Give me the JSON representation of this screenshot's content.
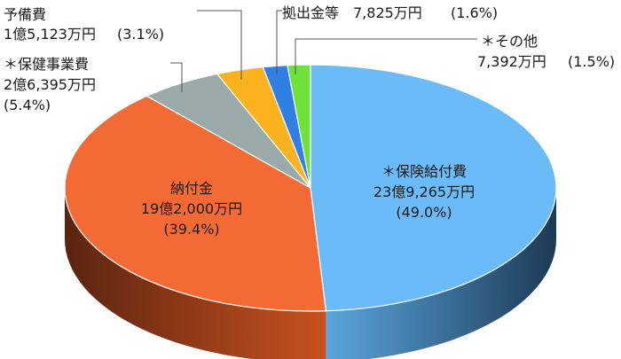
{
  "chart_data": {
    "type": "pie",
    "title": "",
    "slices": [
      {
        "key": "hoken_kyufu",
        "label": "＊保険給付費",
        "amount": "23億9,265万円",
        "pct_label": "(49.0%)",
        "value": 49.0,
        "color": "#6bbbf8",
        "side_color": "#2f6f9e"
      },
      {
        "key": "nofukin",
        "label": "納付金",
        "amount": "19億2,000万円",
        "pct_label": "(39.4%)",
        "value": 39.4,
        "color": "#f46a35",
        "side_color": "#8f3613"
      },
      {
        "key": "hoken_jigyo",
        "label": "＊保健事業費",
        "amount": "2億6,395万円",
        "pct_label": "(5.4%)",
        "value": 5.4,
        "color": "#9aa9a9",
        "side_color": "#5c6868"
      },
      {
        "key": "yobi",
        "label": "予備費",
        "amount": "1億5,123万円",
        "pct_label": "(3.1%)",
        "value": 3.1,
        "color": "#fbb21f",
        "side_color": "#9b6c0c"
      },
      {
        "key": "kyoshutsu",
        "label": "拠出金等",
        "amount": "7,825万円",
        "pct_label": "(1.6%)",
        "value": 1.6,
        "color": "#2f7fe5",
        "side_color": "#1a4c8c"
      },
      {
        "key": "sonota",
        "label": "＊その他",
        "amount": "7,392万円",
        "pct_label": "(1.5%)",
        "value": 1.5,
        "color": "#6fe138",
        "side_color": "#3c8a1a"
      }
    ]
  }
}
